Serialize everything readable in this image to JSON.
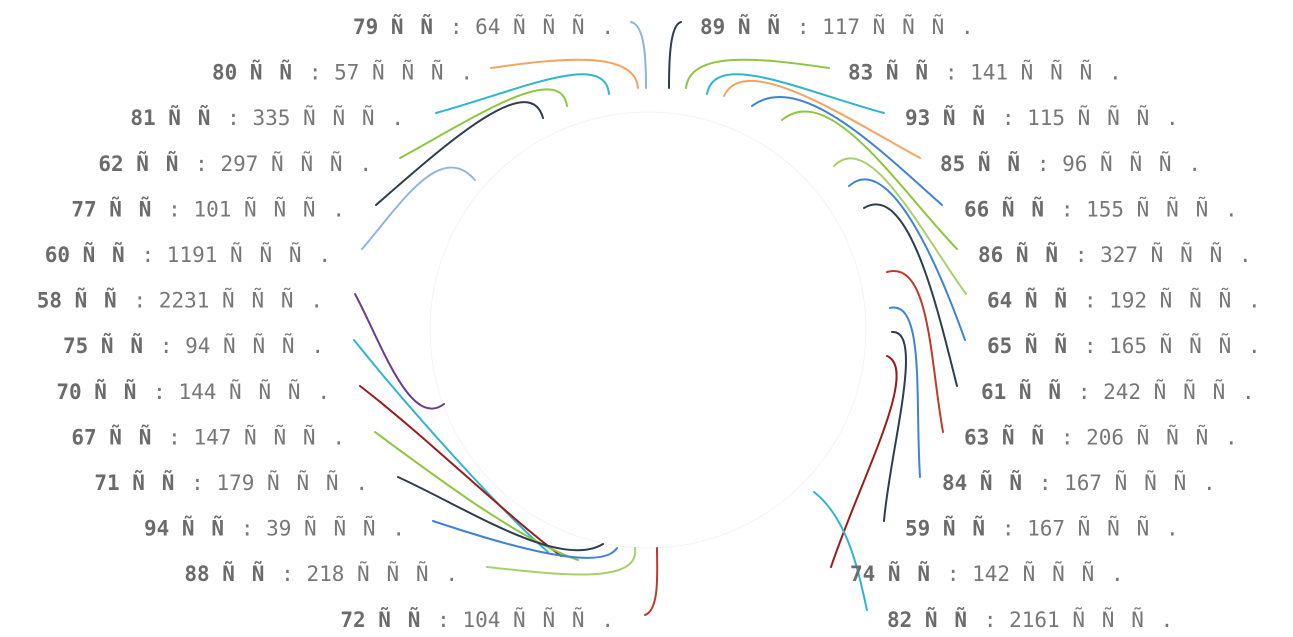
{
  "chart_data": {
    "type": "chord",
    "title": "",
    "value_separator": ": ",
    "labels": [
      {
        "id": "79",
        "unit": "ÑÑ",
        "value": 64,
        "value_unit": "ÑÑÑ.",
        "side": "left"
      },
      {
        "id": "80",
        "unit": "ÑÑ",
        "value": 57,
        "value_unit": "ÑÑÑ.",
        "side": "left"
      },
      {
        "id": "81",
        "unit": "ÑÑ",
        "value": 335,
        "value_unit": "ÑÑÑ.",
        "side": "left"
      },
      {
        "id": "62",
        "unit": "ÑÑ",
        "value": 297,
        "value_unit": "ÑÑÑ.",
        "side": "left"
      },
      {
        "id": "77",
        "unit": "ÑÑ",
        "value": 101,
        "value_unit": "ÑÑÑ.",
        "side": "left"
      },
      {
        "id": "60",
        "unit": "ÑÑ",
        "value": 1191,
        "value_unit": "ÑÑÑ.",
        "side": "left"
      },
      {
        "id": "58",
        "unit": "ÑÑ",
        "value": 2231,
        "value_unit": "ÑÑÑ.",
        "side": "left"
      },
      {
        "id": "75",
        "unit": "ÑÑ",
        "value": 94,
        "value_unit": "ÑÑÑ.",
        "side": "left"
      },
      {
        "id": "70",
        "unit": "ÑÑ",
        "value": 144,
        "value_unit": "ÑÑÑ.",
        "side": "left"
      },
      {
        "id": "67",
        "unit": "ÑÑ",
        "value": 147,
        "value_unit": "ÑÑÑ.",
        "side": "left"
      },
      {
        "id": "71",
        "unit": "ÑÑ",
        "value": 179,
        "value_unit": "ÑÑÑ.",
        "side": "left"
      },
      {
        "id": "94",
        "unit": "ÑÑ",
        "value": 39,
        "value_unit": "ÑÑÑ.",
        "side": "left"
      },
      {
        "id": "88",
        "unit": "ÑÑ",
        "value": 218,
        "value_unit": "ÑÑÑ.",
        "side": "left"
      },
      {
        "id": "72",
        "unit": "ÑÑ",
        "value": 104,
        "value_unit": "ÑÑÑ.",
        "side": "left"
      },
      {
        "id": "89",
        "unit": "ÑÑ",
        "value": 117,
        "value_unit": "ÑÑÑ.",
        "side": "right"
      },
      {
        "id": "83",
        "unit": "ÑÑ",
        "value": 141,
        "value_unit": "ÑÑÑ.",
        "side": "right"
      },
      {
        "id": "93",
        "unit": "ÑÑ",
        "value": 115,
        "value_unit": "ÑÑÑ.",
        "side": "right"
      },
      {
        "id": "85",
        "unit": "ÑÑ",
        "value": 96,
        "value_unit": "ÑÑÑ.",
        "side": "right"
      },
      {
        "id": "66",
        "unit": "ÑÑ",
        "value": 155,
        "value_unit": "ÑÑÑ.",
        "side": "right"
      },
      {
        "id": "86",
        "unit": "ÑÑ",
        "value": 327,
        "value_unit": "ÑÑÑ.",
        "side": "right"
      },
      {
        "id": "64",
        "unit": "ÑÑ",
        "value": 192,
        "value_unit": "ÑÑÑ.",
        "side": "right"
      },
      {
        "id": "65",
        "unit": "ÑÑ",
        "value": 165,
        "value_unit": "ÑÑÑ.",
        "side": "right"
      },
      {
        "id": "61",
        "unit": "ÑÑ",
        "value": 242,
        "value_unit": "ÑÑÑ.",
        "side": "right"
      },
      {
        "id": "63",
        "unit": "ÑÑ",
        "value": 206,
        "value_unit": "ÑÑÑ.",
        "side": "right"
      },
      {
        "id": "84",
        "unit": "ÑÑ",
        "value": 167,
        "value_unit": "ÑÑÑ.",
        "side": "right"
      },
      {
        "id": "59",
        "unit": "ÑÑ",
        "value": 167,
        "value_unit": "ÑÑÑ.",
        "side": "right"
      },
      {
        "id": "74",
        "unit": "ÑÑ",
        "value": 142,
        "value_unit": "ÑÑÑ.",
        "side": "right"
      },
      {
        "id": "82",
        "unit": "ÑÑ",
        "value": 2161,
        "value_unit": "ÑÑÑ.",
        "side": "right"
      }
    ],
    "links": [
      {
        "label": "79",
        "color": "#8eb4e6"
      },
      {
        "label": "80",
        "color": "#f4a460"
      },
      {
        "label": "81",
        "color": "#2fb5d0"
      },
      {
        "label": "62",
        "color": "#8dc63f"
      },
      {
        "label": "77",
        "color": "#2c3e50"
      },
      {
        "label": "60",
        "color": "#8eb4e6"
      },
      {
        "label": "58",
        "color": "#6a3d8c"
      },
      {
        "label": "75",
        "color": "#2fb5d0"
      },
      {
        "label": "70",
        "color": "#9b1c1c"
      },
      {
        "label": "67",
        "color": "#8dc63f"
      },
      {
        "label": "71",
        "color": "#2c3e50"
      },
      {
        "label": "94",
        "color": "#3f82d8"
      },
      {
        "label": "88",
        "color": "#a8d06a"
      },
      {
        "label": "72",
        "color": "#c0392b"
      },
      {
        "label": "89",
        "color": "#2c3e50"
      },
      {
        "label": "83",
        "color": "#8dc63f"
      },
      {
        "label": "93",
        "color": "#2fb5d0"
      },
      {
        "label": "85",
        "color": "#f4a460"
      },
      {
        "label": "66",
        "color": "#3f82d8"
      },
      {
        "label": "86",
        "color": "#8dc63f"
      },
      {
        "label": "64",
        "color": "#a8d06a"
      },
      {
        "label": "65",
        "color": "#3f82d8"
      },
      {
        "label": "61",
        "color": "#2c3e50"
      },
      {
        "label": "63",
        "color": "#c0392b"
      },
      {
        "label": "84",
        "color": "#3f82d8"
      },
      {
        "label": "59",
        "color": "#2c3e50"
      },
      {
        "label": "74",
        "color": "#9b1c1c"
      },
      {
        "label": "82",
        "color": "#2fb5d0"
      }
    ]
  }
}
